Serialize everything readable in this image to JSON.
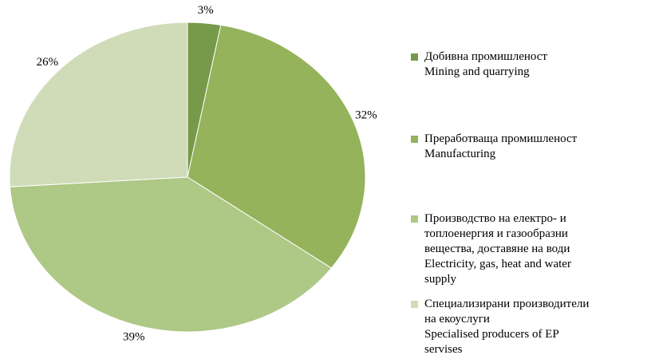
{
  "chart_data": {
    "type": "pie",
    "categories": [
      "Добивна промишленост\nMining and quarrying",
      "Преработваща промишленост\nManufacturing",
      "Производство на електро- и\nтоплоенергия и газообразни\nвещества, доставяне на води\nElectricity, gas, heat and water\nsupply",
      "Специализирани производители\nна екоуслуги\nSpecialised producers of EP\nservises"
    ],
    "values": [
      3,
      32,
      39,
      26
    ],
    "value_labels": [
      "3%",
      "32%",
      "39%",
      "26%"
    ],
    "colors": [
      "#77994a",
      "#94b35a",
      "#aec886",
      "#d0dcb8"
    ],
    "legend": "right"
  }
}
